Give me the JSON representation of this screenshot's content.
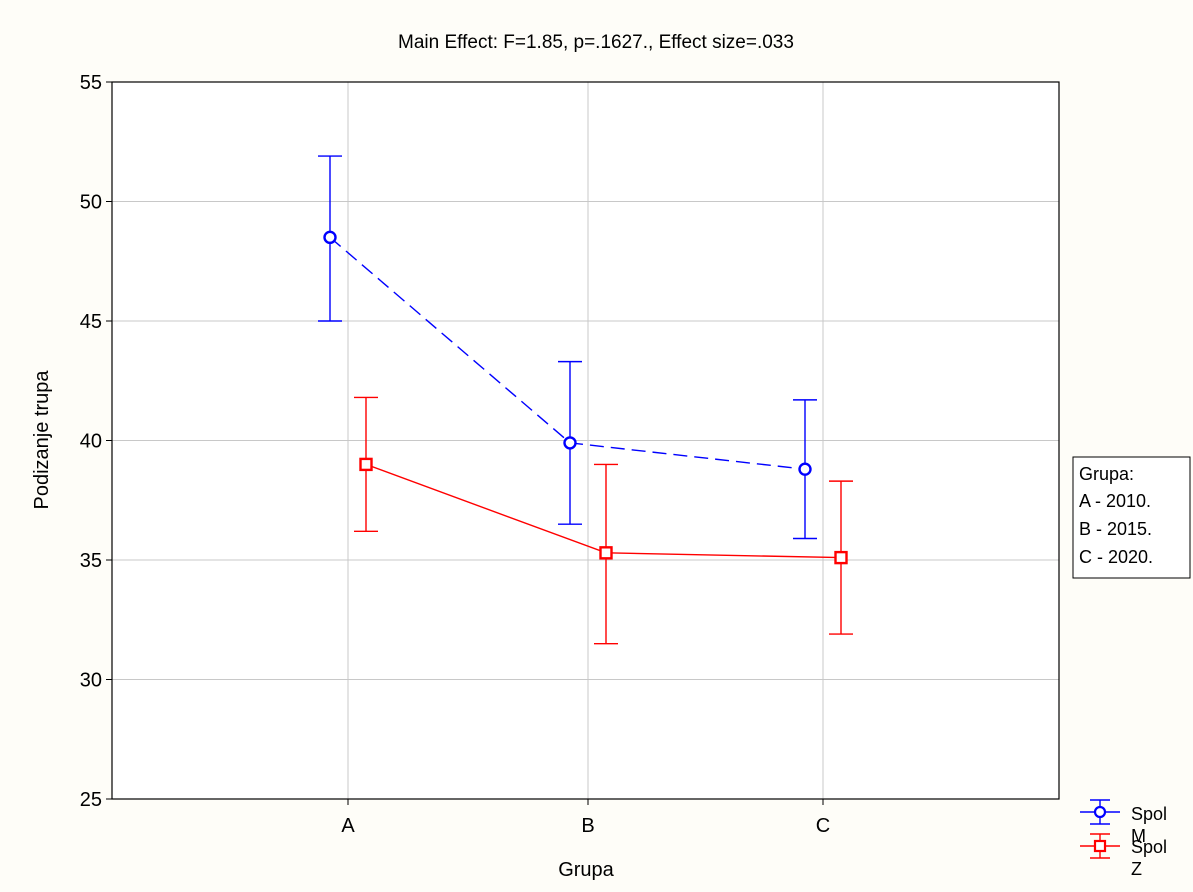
{
  "chart_data": {
    "type": "line",
    "title": "Main Effect: F=1.85, p=.1627., Effect size=.033",
    "xlabel": "Grupa",
    "ylabel": "Podizanje trupa",
    "categories": [
      "A",
      "B",
      "C"
    ],
    "ylim": [
      25,
      55
    ],
    "yticks": [
      25,
      30,
      35,
      40,
      45,
      50,
      55
    ],
    "grid": true,
    "series": [
      {
        "name_line1": "Spol",
        "name_line2": "M",
        "color": "#0000ff",
        "marker": "circle",
        "line_style": "dashed",
        "values": [
          48.5,
          39.9,
          38.8
        ],
        "lower": [
          45.0,
          36.5,
          35.9
        ],
        "upper": [
          51.9,
          43.3,
          41.7
        ]
      },
      {
        "name_line1": "Spol",
        "name_line2": "Z",
        "color": "#ff0000",
        "marker": "square",
        "line_style": "solid",
        "values": [
          39.0,
          35.3,
          35.1
        ],
        "lower": [
          36.2,
          31.5,
          31.9
        ],
        "upper": [
          41.8,
          39.0,
          38.3
        ]
      }
    ],
    "info_box": [
      "Grupa:",
      "A - 2010.",
      "B - 2015.",
      "C - 2020."
    ]
  }
}
